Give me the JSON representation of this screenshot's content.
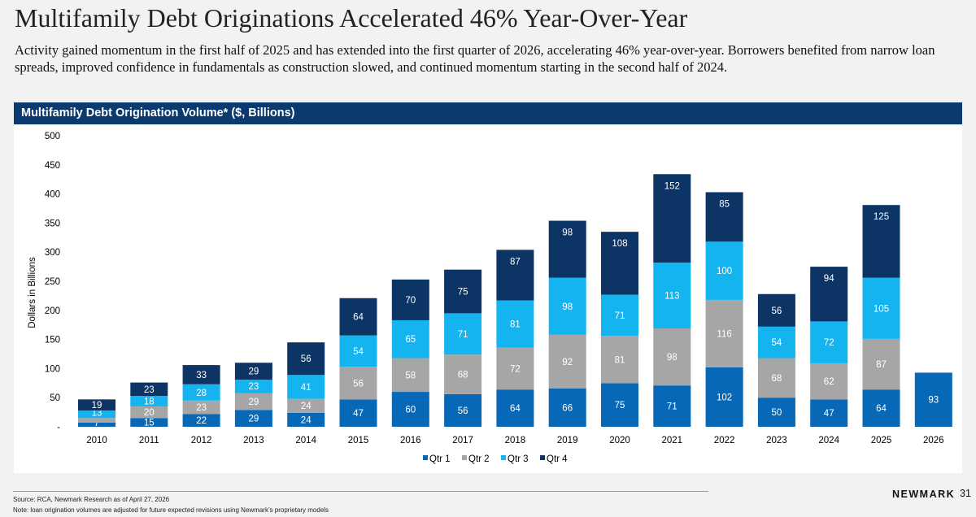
{
  "header": {
    "title": "Multifamily Debt Originations Accelerated 46% Year-Over-Year",
    "subtitle": "Activity gained momentum in the first half of 2025 and has extended into the first quarter of 2026, accelerating 46% year-over-year. Borrowers benefited from narrow loan spreads, improved confidence in fundamentals as construction slowed, and continued momentum starting in the second half of 2024."
  },
  "footer": {
    "source": "Source: RCA, Newmark Research as of April 27, 2026",
    "note": "Note: loan origination volumes are adjusted for future expected revisions using Newmark’s proprietary models",
    "brand": "NEWMARK",
    "page_number": "31"
  },
  "colors": {
    "header_bar": "#0b3a6e",
    "qtr1": "#0868b8",
    "qtr2": "#a6a6a6",
    "qtr3": "#14b4f0",
    "qtr4": "#0c3464"
  },
  "chart_data": {
    "type": "bar",
    "stacked": true,
    "title": "Multifamily Debt Origination Volume* ($, Billions)",
    "xlabel": "",
    "ylabel": "Dollars in Billions",
    "ylim": [
      0,
      500
    ],
    "yticks": [
      "-",
      "50",
      "100",
      "150",
      "200",
      "250",
      "300",
      "350",
      "400",
      "450",
      "500"
    ],
    "legend_position": "bottom",
    "grid": false,
    "categories": [
      "2010",
      "2011",
      "2012",
      "2013",
      "2014",
      "2015",
      "2016",
      "2017",
      "2018",
      "2019",
      "2020",
      "2021",
      "2022",
      "2023",
      "2024",
      "2025",
      "2026"
    ],
    "series": [
      {
        "name": "Qtr 1",
        "color": "#0868b8",
        "values": [
          7,
          15,
          22,
          29,
          24,
          47,
          60,
          56,
          64,
          66,
          75,
          71,
          102,
          50,
          47,
          64,
          93
        ]
      },
      {
        "name": "Qtr 2",
        "color": "#a6a6a6",
        "values": [
          8,
          20,
          23,
          29,
          24,
          56,
          58,
          68,
          72,
          92,
          81,
          98,
          116,
          68,
          62,
          87,
          null
        ]
      },
      {
        "name": "Qtr 3",
        "color": "#14b4f0",
        "values": [
          13,
          18,
          28,
          23,
          41,
          54,
          65,
          71,
          81,
          98,
          71,
          113,
          100,
          54,
          72,
          105,
          null
        ]
      },
      {
        "name": "Qtr 4",
        "color": "#0c3464",
        "values": [
          19,
          23,
          33,
          29,
          56,
          64,
          70,
          75,
          87,
          98,
          108,
          152,
          85,
          56,
          94,
          125,
          null
        ]
      }
    ],
    "data_labels": [
      [
        "7",
        "15",
        "22",
        "29",
        "24",
        "47",
        "60",
        "56",
        "64",
        "66",
        "75",
        "71",
        "102",
        "50",
        "47",
        "64",
        "93"
      ],
      [
        "",
        "20",
        "23",
        "29",
        "24",
        "56",
        "58",
        "68",
        "72",
        "92",
        "81",
        "98",
        "116",
        "68",
        "62",
        "87",
        ""
      ],
      [
        "13",
        "18",
        "28",
        "23",
        "41",
        "54",
        "65",
        "71",
        "81",
        "98",
        "71",
        "113",
        "100",
        "54",
        "72",
        "105",
        ""
      ],
      [
        "19",
        "23",
        "33",
        "29",
        "56",
        "64",
        "70",
        "75",
        "87",
        "98",
        "108",
        "152",
        "85",
        "56",
        "94",
        "125",
        ""
      ]
    ]
  }
}
